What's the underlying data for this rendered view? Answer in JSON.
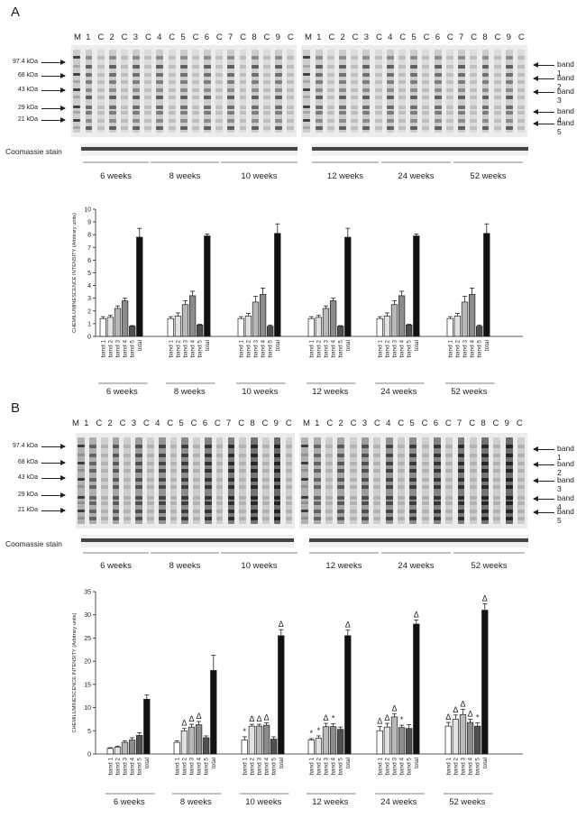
{
  "panels": [
    {
      "letter": "A",
      "lanes_left": [
        "M",
        "1",
        "C",
        "2",
        "C",
        "3",
        "C",
        "4",
        "C",
        "5",
        "C",
        "6",
        "C",
        "7",
        "C",
        "8",
        "C",
        "9",
        "C"
      ],
      "lanes_right": [
        "M",
        "1",
        "C",
        "2",
        "C",
        "3",
        "C",
        "4",
        "C",
        "5",
        "C",
        "6",
        "C",
        "7",
        "C",
        "8",
        "C",
        "9",
        "C"
      ],
      "mw_markers": [
        "97.4 kDa",
        "68 kDa",
        "43 kDa",
        "29 kDa",
        "21 kDa"
      ],
      "band_labels": [
        "band 1",
        "band 2",
        "band 3",
        "band 4",
        "band 5"
      ],
      "stain_label": "Coomassie stain",
      "weeks": [
        "6 weeks",
        "8 weeks",
        "10 weeks",
        "12 weeks",
        "24 weeks",
        "52 weeks"
      ]
    },
    {
      "letter": "B",
      "lanes_left": [
        "M",
        "1",
        "C",
        "2",
        "C",
        "3",
        "C",
        "4",
        "C",
        "5",
        "C",
        "6",
        "C",
        "7",
        "C",
        "8",
        "C",
        "9",
        "C"
      ],
      "lanes_right": [
        "M",
        "1",
        "C",
        "2",
        "C",
        "3",
        "C",
        "4",
        "C",
        "5",
        "C",
        "6",
        "C",
        "7",
        "C",
        "8",
        "C",
        "9",
        "C"
      ],
      "mw_markers": [
        "97.4 kDa",
        "68 kDa",
        "43 kDa",
        "29 kDa",
        "21 kDa"
      ],
      "band_labels": [
        "band 1",
        "band 2",
        "band 3",
        "band 4",
        "band 5"
      ],
      "stain_label": "Coomassie stain",
      "weeks": [
        "6 weeks",
        "8 weeks",
        "10 weeks",
        "12 weeks",
        "24 weeks",
        "52 weeks"
      ]
    }
  ],
  "chart_data": [
    {
      "type": "bar",
      "ylabel": "CHEMILUMINESCENCE INTENSITY (Arbitrary units)",
      "ylim": [
        0,
        10
      ],
      "yticks": [
        "0",
        "1",
        "2",
        "3",
        "4",
        "5",
        "6",
        "7",
        "8",
        "9",
        "10"
      ],
      "categories": [
        "band 1",
        "band 2",
        "band 3",
        "band 4",
        "band 5",
        "total"
      ],
      "groups": [
        "6 weeks",
        "8 weeks",
        "10 weeks",
        "12 weeks",
        "24 weeks",
        "52 weeks"
      ],
      "values": [
        [
          1.4,
          1.5,
          2.2,
          2.8,
          0.8,
          7.8
        ],
        [
          1.4,
          1.6,
          2.5,
          3.2,
          0.9,
          7.9
        ],
        [
          1.4,
          1.6,
          2.7,
          3.3,
          0.8,
          8.1
        ],
        [
          1.4,
          1.5,
          2.2,
          2.8,
          0.8,
          7.8
        ],
        [
          1.4,
          1.6,
          2.5,
          3.2,
          0.9,
          7.9
        ],
        [
          1.4,
          1.6,
          2.7,
          3.3,
          0.8,
          8.1
        ]
      ],
      "errors": [
        [
          0.15,
          0.15,
          0.2,
          0.2,
          0.05,
          0.7
        ],
        [
          0.15,
          0.25,
          0.3,
          0.35,
          0.05,
          0.15
        ],
        [
          0.15,
          0.2,
          0.45,
          0.5,
          0.1,
          0.75
        ],
        [
          0.15,
          0.15,
          0.2,
          0.2,
          0.05,
          0.7
        ],
        [
          0.15,
          0.25,
          0.3,
          0.35,
          0.05,
          0.15
        ],
        [
          0.15,
          0.2,
          0.45,
          0.5,
          0.1,
          0.75
        ]
      ],
      "markers": [
        [
          "",
          "",
          "",
          "",
          "",
          ""
        ],
        [
          "",
          "",
          "",
          "",
          "",
          ""
        ],
        [
          "",
          "",
          "",
          "",
          "",
          ""
        ],
        [
          "",
          "",
          "",
          "",
          "",
          ""
        ],
        [
          "",
          "",
          "",
          "",
          "",
          ""
        ],
        [
          "",
          "",
          "",
          "",
          "",
          ""
        ]
      ],
      "colors": [
        "#ffffff",
        "#e2e2e2",
        "#b8b8b8",
        "#8c8c8c",
        "#505050",
        "#111111"
      ]
    },
    {
      "type": "bar",
      "ylabel": "CHEMILUMINESCENCE INTENSITY (Arbitrary units)",
      "ylim": [
        0,
        35
      ],
      "yticks": [
        "0",
        "5",
        "10",
        "15",
        "20",
        "25",
        "30",
        "35"
      ],
      "categories": [
        "band 1",
        "band 2",
        "band 3",
        "band 4",
        "band 5",
        "total"
      ],
      "groups": [
        "6 weeks",
        "8 weeks",
        "10 weeks",
        "12 weeks",
        "24 weeks",
        "52 weeks"
      ],
      "values": [
        [
          1.2,
          1.5,
          2.5,
          3.0,
          4.0,
          11.8
        ],
        [
          2.5,
          5.0,
          5.8,
          6.3,
          3.5,
          18.0
        ],
        [
          3.0,
          6.0,
          6.0,
          6.2,
          3.2,
          25.5
        ],
        [
          3.0,
          3.4,
          5.9,
          5.9,
          5.3,
          25.5
        ],
        [
          5.0,
          5.8,
          8.0,
          5.7,
          5.5,
          28.0
        ],
        [
          6.0,
          7.5,
          8.5,
          6.8,
          6.0,
          31.0
        ]
      ],
      "errors": [
        [
          0.15,
          0.2,
          0.3,
          0.5,
          0.6,
          0.9
        ],
        [
          0.3,
          0.5,
          0.6,
          0.7,
          0.4,
          3.3
        ],
        [
          0.7,
          0.4,
          0.4,
          0.5,
          0.5,
          1.3
        ],
        [
          0.3,
          0.5,
          0.7,
          0.6,
          0.5,
          1.2
        ],
        [
          0.9,
          0.8,
          0.7,
          0.5,
          0.8,
          0.9
        ],
        [
          0.8,
          0.9,
          1.1,
          0.7,
          0.7,
          1.4
        ]
      ],
      "markers": [
        [
          "",
          "",
          "",
          "",
          "",
          ""
        ],
        [
          "",
          "Δ",
          "Δ",
          "Δ",
          "",
          ""
        ],
        [
          "*",
          "Δ",
          "Δ",
          "Δ",
          "",
          "Δ"
        ],
        [
          "*",
          "*",
          "Δ",
          "*",
          "",
          "Δ"
        ],
        [
          "Δ",
          "Δ",
          "Δ",
          "*",
          "",
          "Δ"
        ],
        [
          "Δ",
          "Δ",
          "Δ",
          "Δ",
          "*",
          "Δ"
        ]
      ],
      "colors": [
        "#ffffff",
        "#e2e2e2",
        "#b8b8b8",
        "#8c8c8c",
        "#505050",
        "#111111"
      ]
    }
  ]
}
